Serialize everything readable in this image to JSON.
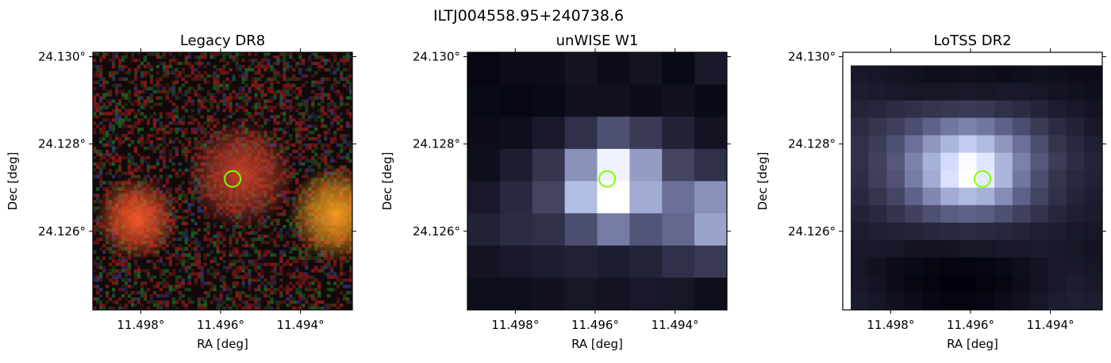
{
  "figure": {
    "title": "ILTJ004558.95+240738.6"
  },
  "colors": {
    "marker": "#7fff00",
    "axes": "#000000",
    "background": "#ffffff"
  },
  "chart_data": [
    {
      "type": "heatmap",
      "title": "Legacy DR8",
      "xlabel": "RA [deg]",
      "ylabel": "Dec [deg]",
      "xlim": [
        11.4992,
        11.4927
      ],
      "ylim": [
        24.1242,
        24.1301
      ],
      "x_ticks": [
        11.498,
        11.496,
        11.494
      ],
      "x_tick_labels": [
        "11.498°",
        "11.496°",
        "11.494°"
      ],
      "y_ticks": [
        24.13,
        24.128,
        24.126
      ],
      "y_tick_labels": [
        "24.130°",
        "24.128°",
        "24.126°"
      ],
      "image_kind": "rgb-optical",
      "sources": [
        {
          "ra": 11.4955,
          "dec": 24.1273,
          "color": "#c8412a",
          "radius_arcsec": 4.5
        },
        {
          "ra": 11.4981,
          "dec": 24.1263,
          "color": "#ff5a2a",
          "radius_arcsec": 3.5
        },
        {
          "ra": 11.4931,
          "dec": 24.1264,
          "color": "#ffa020",
          "radius_arcsec": 4.0
        }
      ],
      "marker": {
        "ra": 11.4957,
        "dec": 24.1272,
        "shape": "circle",
        "color": "#7fff00"
      }
    },
    {
      "type": "heatmap",
      "title": "unWISE W1",
      "xlabel": "RA [deg]",
      "ylabel": "Dec [deg]",
      "xlim": [
        11.4992,
        11.4927
      ],
      "ylim": [
        24.1242,
        24.1301
      ],
      "x_ticks": [
        11.498,
        11.496,
        11.494
      ],
      "x_tick_labels": [
        "11.498°",
        "11.496°",
        "11.494°"
      ],
      "y_ticks": [
        24.13,
        24.128,
        24.126
      ],
      "y_tick_labels": [
        "24.130°",
        "24.128°",
        "24.126°"
      ],
      "colormap": "bone",
      "grid": [
        [
          0.03,
          0.05,
          0.05,
          0.08,
          0.05,
          0.08,
          0.04,
          0.1
        ],
        [
          0.04,
          0.03,
          0.04,
          0.07,
          0.07,
          0.05,
          0.07,
          0.04
        ],
        [
          0.05,
          0.06,
          0.1,
          0.2,
          0.33,
          0.24,
          0.14,
          0.08
        ],
        [
          0.06,
          0.12,
          0.22,
          0.58,
          0.95,
          0.62,
          0.28,
          0.2
        ],
        [
          0.1,
          0.17,
          0.28,
          0.75,
          1.0,
          0.68,
          0.45,
          0.58
        ],
        [
          0.14,
          0.18,
          0.2,
          0.32,
          0.5,
          0.35,
          0.42,
          0.65
        ],
        [
          0.08,
          0.1,
          0.12,
          0.14,
          0.12,
          0.15,
          0.2,
          0.24
        ],
        [
          0.06,
          0.06,
          0.07,
          0.09,
          0.08,
          0.1,
          0.09,
          0.06
        ]
      ],
      "marker": {
        "ra": 11.4957,
        "dec": 24.1272,
        "shape": "circle",
        "color": "#7fff00"
      }
    },
    {
      "type": "heatmap",
      "title": "LoTSS DR2",
      "xlabel": "RA [deg]",
      "ylabel": "Dec [deg]",
      "xlim": [
        11.4992,
        11.4927
      ],
      "ylim": [
        24.1242,
        24.1301
      ],
      "x_ticks": [
        11.498,
        11.496,
        11.494
      ],
      "x_tick_labels": [
        "11.498°",
        "11.496°",
        "11.494°"
      ],
      "y_ticks": [
        24.13,
        24.128,
        24.126
      ],
      "y_tick_labels": [
        "24.130°",
        "24.128°",
        "24.126°"
      ],
      "colormap": "bone",
      "image_extent": {
        "ra": [
          11.499,
          11.4927
        ],
        "dec": [
          24.1242,
          24.1298
        ]
      },
      "grid": [
        [
          0.1,
          0.09,
          0.08,
          0.07,
          0.06,
          0.06,
          0.07,
          0.06,
          0.05,
          0.06,
          0.07,
          0.06,
          0.05,
          0.05
        ],
        [
          0.12,
          0.11,
          0.1,
          0.09,
          0.09,
          0.09,
          0.1,
          0.09,
          0.1,
          0.1,
          0.09,
          0.08,
          0.07,
          0.06
        ],
        [
          0.15,
          0.16,
          0.18,
          0.2,
          0.22,
          0.23,
          0.24,
          0.23,
          0.2,
          0.18,
          0.15,
          0.12,
          0.1,
          0.08
        ],
        [
          0.18,
          0.22,
          0.26,
          0.32,
          0.4,
          0.48,
          0.52,
          0.48,
          0.4,
          0.32,
          0.24,
          0.18,
          0.14,
          0.1
        ],
        [
          0.2,
          0.25,
          0.33,
          0.45,
          0.6,
          0.72,
          0.8,
          0.74,
          0.6,
          0.45,
          0.32,
          0.22,
          0.17,
          0.13
        ],
        [
          0.2,
          0.27,
          0.36,
          0.52,
          0.7,
          0.86,
          0.98,
          0.9,
          0.72,
          0.52,
          0.36,
          0.25,
          0.19,
          0.15
        ],
        [
          0.19,
          0.26,
          0.34,
          0.5,
          0.68,
          0.88,
          1.0,
          0.92,
          0.72,
          0.48,
          0.32,
          0.22,
          0.17,
          0.14
        ],
        [
          0.17,
          0.22,
          0.29,
          0.4,
          0.54,
          0.68,
          0.74,
          0.7,
          0.56,
          0.4,
          0.28,
          0.2,
          0.15,
          0.12
        ],
        [
          0.14,
          0.17,
          0.21,
          0.27,
          0.33,
          0.38,
          0.4,
          0.38,
          0.33,
          0.27,
          0.21,
          0.16,
          0.13,
          0.11
        ],
        [
          0.12,
          0.13,
          0.14,
          0.15,
          0.16,
          0.17,
          0.18,
          0.17,
          0.16,
          0.15,
          0.13,
          0.12,
          0.1,
          0.09
        ],
        [
          0.1,
          0.1,
          0.09,
          0.08,
          0.08,
          0.08,
          0.09,
          0.09,
          0.1,
          0.1,
          0.11,
          0.1,
          0.09,
          0.08
        ],
        [
          0.09,
          0.07,
          0.05,
          0.04,
          0.03,
          0.02,
          0.02,
          0.03,
          0.04,
          0.06,
          0.08,
          0.1,
          0.1,
          0.09
        ],
        [
          0.1,
          0.08,
          0.05,
          0.03,
          0.02,
          0.01,
          0.01,
          0.02,
          0.03,
          0.05,
          0.08,
          0.1,
          0.12,
          0.1
        ],
        [
          0.11,
          0.09,
          0.07,
          0.05,
          0.03,
          0.02,
          0.02,
          0.03,
          0.05,
          0.07,
          0.09,
          0.12,
          0.13,
          0.12
        ]
      ],
      "marker": {
        "ra": 11.4957,
        "dec": 24.1272,
        "shape": "circle",
        "color": "#7fff00"
      }
    }
  ]
}
